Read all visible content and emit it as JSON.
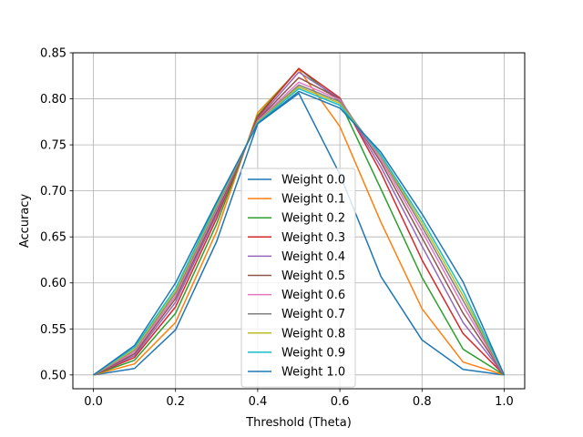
{
  "chart_data": {
    "type": "line",
    "title": "",
    "xlabel": "Threshold (Theta)",
    "ylabel": "Accuracy",
    "xlim": [
      -0.05,
      1.05
    ],
    "ylim": [
      0.485,
      0.85
    ],
    "xticks": [
      0.0,
      0.2,
      0.4,
      0.6,
      0.8,
      1.0
    ],
    "xtick_labels": [
      "0.0",
      "0.2",
      "0.4",
      "0.6",
      "0.8",
      "1.0"
    ],
    "yticks": [
      0.5,
      0.55,
      0.6,
      0.65,
      0.7,
      0.75,
      0.8,
      0.85
    ],
    "ytick_labels": [
      "0.50",
      "0.55",
      "0.60",
      "0.65",
      "0.70",
      "0.75",
      "0.80",
      "0.85"
    ],
    "grid": true,
    "legend_position": "center",
    "x": [
      0.0,
      0.1,
      0.2,
      0.3,
      0.4,
      0.5,
      0.6,
      0.7,
      0.8,
      0.9,
      1.0
    ],
    "series": [
      {
        "name": "Weight 0.0",
        "color": "#1f77b4",
        "values": [
          0.5,
          0.507,
          0.549,
          0.645,
          0.773,
          0.806,
          0.718,
          0.607,
          0.538,
          0.506,
          0.5
        ]
      },
      {
        "name": "Weight 0.1",
        "color": "#ff7f0e",
        "values": [
          0.5,
          0.512,
          0.557,
          0.656,
          0.785,
          0.832,
          0.77,
          0.666,
          0.572,
          0.514,
          0.5
        ]
      },
      {
        "name": "Weight 0.2",
        "color": "#2ca02c",
        "values": [
          0.5,
          0.516,
          0.567,
          0.664,
          0.782,
          0.833,
          0.797,
          0.702,
          0.606,
          0.528,
          0.5
        ]
      },
      {
        "name": "Weight 0.3",
        "color": "#d62728",
        "values": [
          0.5,
          0.519,
          0.574,
          0.67,
          0.78,
          0.833,
          0.801,
          0.72,
          0.625,
          0.545,
          0.5
        ]
      },
      {
        "name": "Weight 0.4",
        "color": "#9467bd",
        "values": [
          0.5,
          0.521,
          0.579,
          0.674,
          0.778,
          0.829,
          0.8,
          0.726,
          0.64,
          0.557,
          0.5
        ]
      },
      {
        "name": "Weight 0.5",
        "color": "#8c564b",
        "values": [
          0.5,
          0.523,
          0.583,
          0.677,
          0.777,
          0.823,
          0.8,
          0.731,
          0.649,
          0.567,
          0.5
        ]
      },
      {
        "name": "Weight 0.6",
        "color": "#e377c2",
        "values": [
          0.5,
          0.525,
          0.586,
          0.68,
          0.776,
          0.818,
          0.799,
          0.734,
          0.656,
          0.575,
          0.5
        ]
      },
      {
        "name": "Weight 0.7",
        "color": "#7f7f7f",
        "values": [
          0.5,
          0.527,
          0.589,
          0.682,
          0.775,
          0.815,
          0.797,
          0.737,
          0.661,
          0.581,
          0.5
        ]
      },
      {
        "name": "Weight 0.8",
        "color": "#bcbd22",
        "values": [
          0.5,
          0.528,
          0.591,
          0.684,
          0.775,
          0.813,
          0.795,
          0.738,
          0.665,
          0.586,
          0.5
        ]
      },
      {
        "name": "Weight 0.9",
        "color": "#17becf",
        "values": [
          0.5,
          0.53,
          0.594,
          0.686,
          0.774,
          0.811,
          0.793,
          0.739,
          0.669,
          0.591,
          0.5
        ]
      },
      {
        "name": "Weight 1.0",
        "color": "#1f77b4",
        "values": [
          0.5,
          0.532,
          0.6,
          0.688,
          0.773,
          0.808,
          0.79,
          0.742,
          0.675,
          0.601,
          0.5
        ]
      }
    ]
  }
}
